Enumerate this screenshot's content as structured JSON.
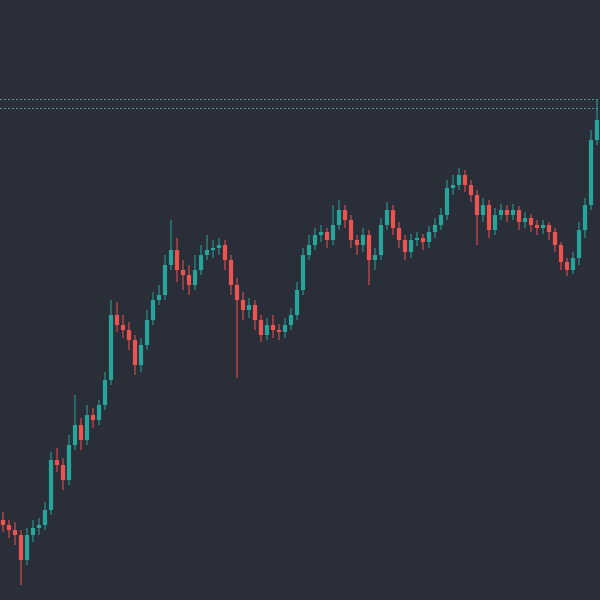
{
  "chart_data": {
    "type": "candlestick",
    "background": "#2a2e39",
    "up_color": "#26a69a",
    "down_color": "#ef5350",
    "ylim": [
      0,
      600
    ],
    "price_lines": [
      501,
      492
    ],
    "price_line_color": "#4f8f8c",
    "open": [
      80,
      75,
      70,
      65,
      40,
      65,
      72,
      75,
      90,
      140,
      135,
      120,
      155,
      175,
      160,
      185,
      180,
      195,
      220,
      285,
      275,
      270,
      260,
      235,
      255,
      280,
      300,
      305,
      335,
      350,
      330,
      325,
      315,
      330,
      345,
      350,
      352,
      355,
      340,
      315,
      300,
      290,
      295,
      280,
      265,
      275,
      270,
      268,
      275,
      285,
      310,
      345,
      355,
      365,
      368,
      360,
      375,
      390,
      380,
      360,
      355,
      365,
      340,
      345,
      375,
      390,
      372,
      360,
      348,
      360,
      362,
      358,
      368,
      375,
      385,
      412,
      415,
      425,
      415,
      405,
      385,
      395,
      370,
      385,
      390,
      385,
      390,
      378,
      382,
      375,
      372,
      375,
      368,
      355,
      338,
      330,
      342,
      370,
      395,
      460
    ],
    "high": [
      88,
      80,
      78,
      70,
      72,
      80,
      82,
      98,
      148,
      152,
      142,
      165,
      205,
      182,
      195,
      192,
      200,
      228,
      300,
      298,
      285,
      278,
      265,
      262,
      290,
      308,
      315,
      345,
      380,
      362,
      340,
      335,
      345,
      355,
      365,
      360,
      362,
      360,
      345,
      322,
      308,
      302,
      300,
      285,
      282,
      285,
      276,
      282,
      292,
      318,
      352,
      365,
      372,
      375,
      372,
      395,
      400,
      395,
      385,
      365,
      372,
      370,
      352,
      382,
      398,
      395,
      378,
      365,
      366,
      368,
      366,
      374,
      382,
      392,
      420,
      425,
      432,
      430,
      420,
      410,
      402,
      400,
      392,
      396,
      395,
      396,
      394,
      388,
      386,
      380,
      380,
      378,
      372,
      358,
      342,
      348,
      378,
      402,
      470,
      500
    ],
    "low": [
      68,
      62,
      55,
      15,
      35,
      58,
      65,
      70,
      85,
      128,
      110,
      115,
      150,
      150,
      155,
      172,
      175,
      190,
      215,
      268,
      262,
      250,
      225,
      228,
      250,
      275,
      295,
      300,
      330,
      318,
      310,
      305,
      310,
      325,
      340,
      342,
      345,
      330,
      305,
      222,
      280,
      282,
      270,
      258,
      260,
      262,
      260,
      262,
      270,
      280,
      305,
      340,
      350,
      358,
      352,
      355,
      370,
      372,
      352,
      345,
      348,
      315,
      330,
      340,
      370,
      365,
      352,
      340,
      342,
      354,
      350,
      352,
      362,
      370,
      380,
      405,
      410,
      408,
      398,
      355,
      378,
      362,
      365,
      380,
      378,
      380,
      370,
      372,
      368,
      365,
      366,
      360,
      348,
      330,
      324,
      326,
      335,
      362,
      390,
      455
    ],
    "close": [
      75,
      70,
      65,
      40,
      65,
      72,
      75,
      90,
      140,
      135,
      120,
      155,
      175,
      160,
      185,
      180,
      195,
      220,
      285,
      275,
      270,
      260,
      235,
      255,
      280,
      300,
      305,
      335,
      350,
      330,
      325,
      315,
      330,
      345,
      350,
      352,
      355,
      340,
      315,
      300,
      290,
      295,
      280,
      265,
      275,
      270,
      268,
      275,
      285,
      310,
      345,
      355,
      365,
      368,
      360,
      375,
      390,
      380,
      360,
      355,
      365,
      340,
      345,
      375,
      390,
      372,
      360,
      348,
      360,
      362,
      358,
      368,
      375,
      385,
      412,
      415,
      425,
      415,
      405,
      385,
      395,
      370,
      385,
      390,
      385,
      390,
      378,
      382,
      375,
      372,
      375,
      368,
      355,
      338,
      330,
      342,
      370,
      395,
      460,
      480
    ]
  }
}
